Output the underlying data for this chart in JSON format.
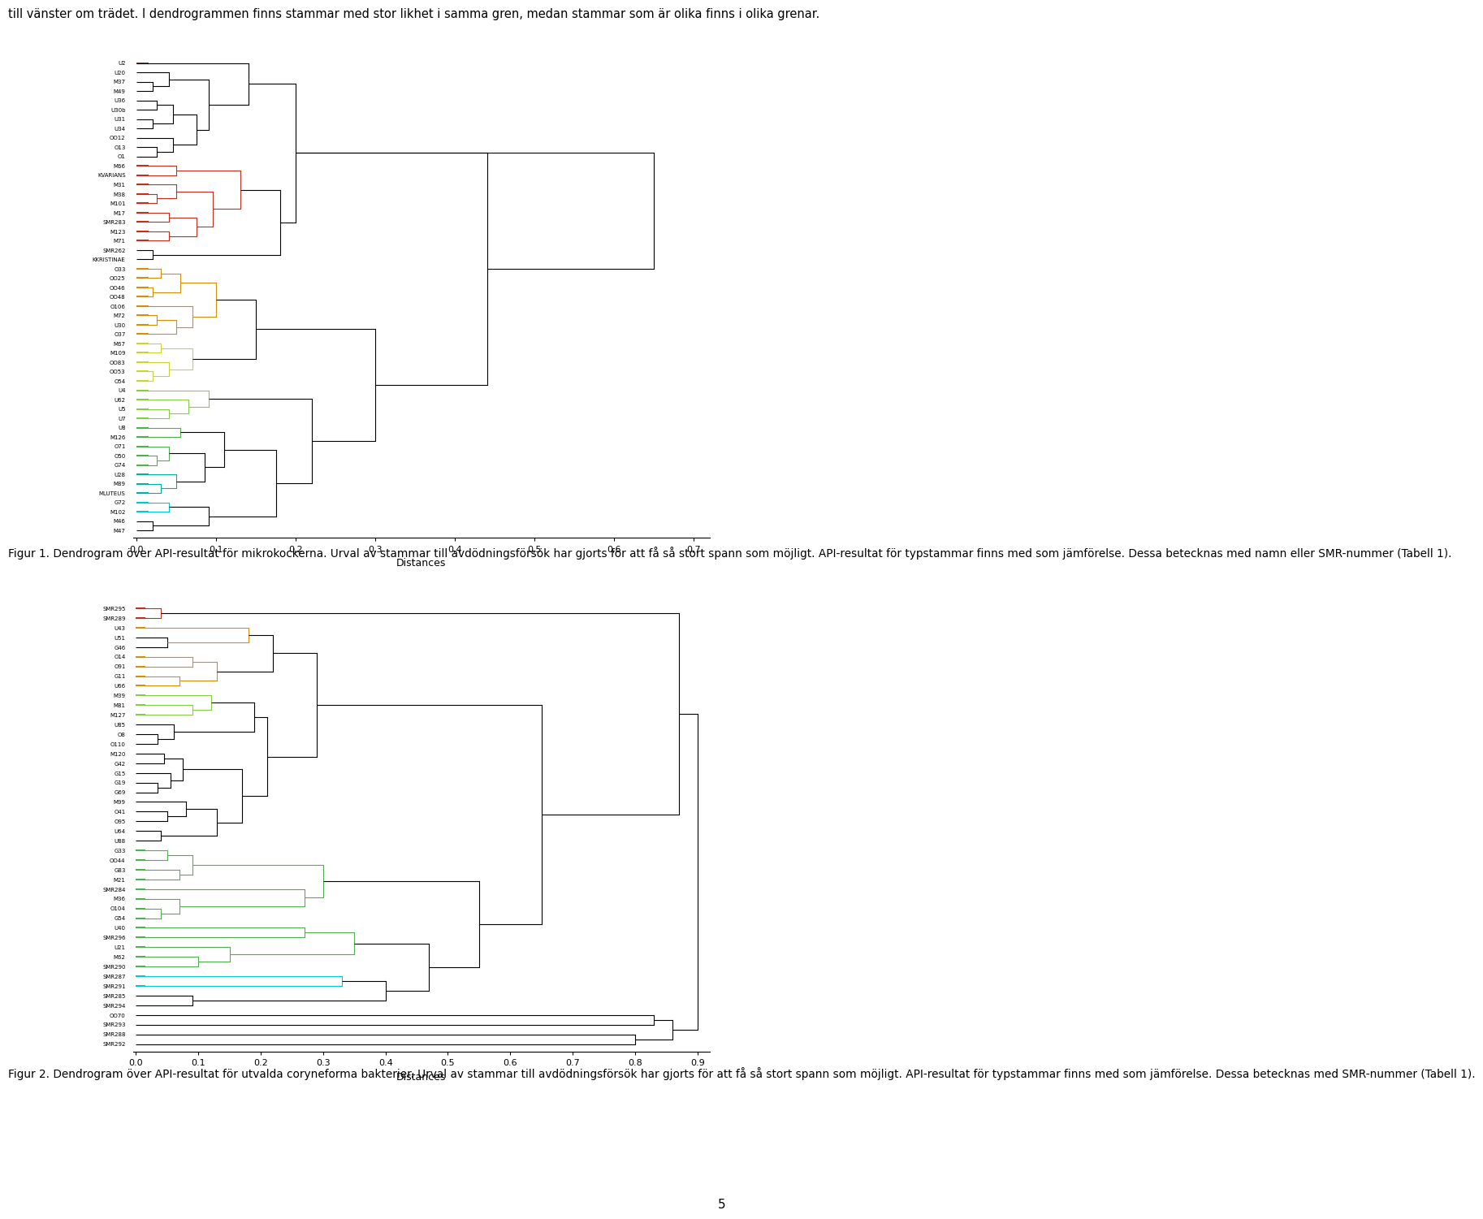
{
  "header_text": "till vänster om trädet. I dendrogrammen finns stammar med stor likhet i samma gren, medan stammar som är olika finns i olika grenar.",
  "fig1_caption": "Figur 1. Dendrogram över API-resultat för mikrokockerna. Urval av stammar till avdödningsförsök har gjorts för att få så stort spann som möjligt. API-resultat för typstammar finns med som jämförelse. Dessa betecknas med namn eller SMR-nummer (Tabell 1).",
  "fig2_caption": "Figur 2. Dendrogram över API-resultat för utvalda coryneforma bakterier. Urval av stammar till avdödningsförsök har gjorts för att få så stort spann som möjligt. API-resultat för typstammar finns med som jämförelse. Dessa betecknas med SMR-nummer (Tabell 1).",
  "page_number": "5",
  "dendro1": {
    "labels": [
      "M47",
      "M46",
      "M102",
      "G72",
      "MLUTEUS",
      "M89",
      "U28",
      "G74",
      "O50",
      "O71",
      "M126",
      "U8",
      "U7",
      "U5",
      "U62",
      "U4",
      "O54",
      "OO53",
      "OO83",
      "M109",
      "M67",
      "O37",
      "U30",
      "M72",
      "O106",
      "OO48",
      "OO46",
      "OO25",
      "O33",
      "KKRISTINAE",
      "SMR262",
      "M71",
      "M123",
      "SMR283",
      "M17",
      "M101",
      "M38",
      "M31",
      "KVARIANS",
      "M66",
      "O1",
      "O13",
      "OO12",
      "U34",
      "U31",
      "U30b",
      "U36",
      "M49",
      "M37",
      "U20",
      "U2"
    ],
    "xticks": [
      0.0,
      0.1,
      0.2,
      0.3,
      0.4,
      0.5,
      0.6,
      0.7
    ],
    "xtick_labels": [
      "0,0",
      "0,1",
      "0,2",
      "0,3",
      "0,4",
      "0,5",
      "0,6",
      "0,7"
    ],
    "xlabel": "Distances",
    "xlim": [
      0.0,
      0.72
    ]
  },
  "dendro2": {
    "labels": [
      "SMR292",
      "SMR288",
      "SMR293",
      "OO70",
      "SMR294",
      "SMR285",
      "SMR291",
      "SMR287",
      "SMR290",
      "M62",
      "U21",
      "SMR296",
      "U40",
      "G54",
      "O104",
      "M36",
      "SMR284",
      "M21",
      "G83",
      "OO44",
      "G33",
      "U88",
      "U64",
      "O95",
      "O41",
      "M99",
      "G69",
      "G19",
      "G15",
      "G42",
      "M120",
      "O110",
      "O8",
      "U85",
      "M127",
      "M81",
      "M39",
      "U66",
      "G11",
      "O91",
      "O14",
      "G46",
      "U51",
      "U43",
      "SMR289",
      "SMR295"
    ],
    "xticks": [
      0.0,
      0.1,
      0.2,
      0.3,
      0.4,
      0.5,
      0.6,
      0.7,
      0.8,
      0.9
    ],
    "xtick_labels": [
      "0.0",
      "0.1",
      "0.2",
      "0.3",
      "0.4",
      "0.5",
      "0.6",
      "0.7",
      "0.8",
      "0.9"
    ],
    "xlabel": "Distances",
    "xlim": [
      0.0,
      0.92
    ]
  },
  "colors": {
    "cyan": "#00c8d0",
    "teal": "#00b0a0",
    "green_med": "#50b050",
    "green_light": "#88cc44",
    "yellow": "#c8d430",
    "orange": "#d4900a",
    "darkred": "#c03020",
    "black": "#000000"
  }
}
